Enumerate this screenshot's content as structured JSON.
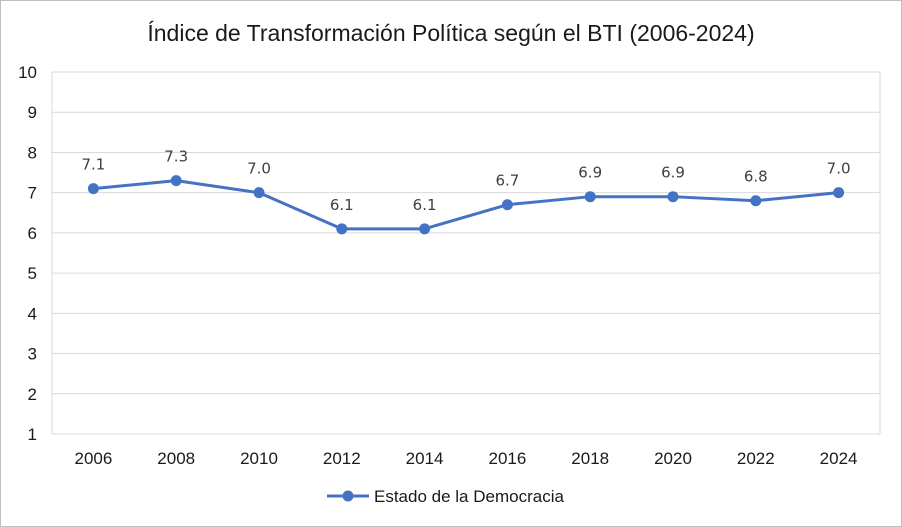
{
  "chart_data": {
    "type": "line",
    "title": "Índice de Transformación Política según el BTI (2006-2024)",
    "categories": [
      "2006",
      "2008",
      "2010",
      "2012",
      "2014",
      "2016",
      "2018",
      "2020",
      "2022",
      "2024"
    ],
    "series": [
      {
        "name": "Estado de la Democracia",
        "values": [
          7.1,
          7.3,
          7.0,
          6.1,
          6.1,
          6.7,
          6.9,
          6.9,
          6.8,
          7.0
        ],
        "labels": [
          "7.1",
          "7.3",
          "7.0",
          "6.1",
          "6.1",
          "6.7",
          "6.9",
          "6.9",
          "6.8",
          "7.0"
        ],
        "color": "#4472c4"
      }
    ],
    "yticks": [
      "1",
      "2",
      "3",
      "4",
      "5",
      "6",
      "7",
      "8",
      "9",
      "10"
    ],
    "ylim": [
      1,
      10
    ],
    "xlabel": "",
    "ylabel": "",
    "grid": true,
    "legend": "bottom",
    "colors": {
      "grid": "#d9d9d9",
      "line": "#4472c4"
    }
  }
}
